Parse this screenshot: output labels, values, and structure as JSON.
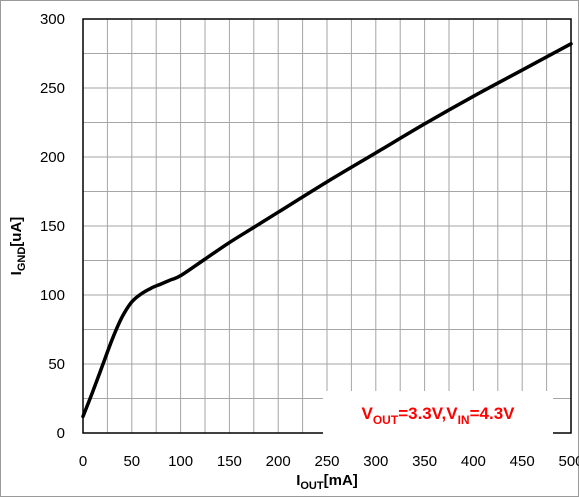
{
  "chart_data": {
    "type": "line",
    "title": "",
    "xlabel": {
      "main": "I",
      "sub": "OUT",
      "tail": "[mA]"
    },
    "ylabel": {
      "main": "I",
      "sub": "GND",
      "tail": "[uA]"
    },
    "xlim": [
      0,
      500
    ],
    "ylim": [
      0,
      300
    ],
    "x_ticks": [
      0,
      50,
      100,
      150,
      200,
      250,
      300,
      350,
      400,
      450,
      500
    ],
    "y_ticks": [
      0,
      50,
      100,
      150,
      200,
      250,
      300
    ],
    "grid": true,
    "series": [
      {
        "x": [
          0,
          10,
          20,
          30,
          40,
          50,
          60,
          70,
          80,
          90,
          100,
          125,
          150,
          175,
          200,
          250,
          300,
          350,
          400,
          450,
          500
        ],
        "y": [
          12,
          30,
          49,
          68,
          84,
          95,
          101,
          105,
          108,
          111,
          114,
          126,
          138,
          149,
          160,
          182,
          203,
          224,
          244,
          263,
          282
        ],
        "color": "#000000"
      }
    ],
    "annotation": {
      "parts": [
        {
          "text": "V",
          "sub": false
        },
        {
          "text": "OUT",
          "sub": true
        },
        {
          "text": "=3.3V,V",
          "sub": false
        },
        {
          "text": "IN",
          "sub": true
        },
        {
          "text": "=4.3V",
          "sub": false
        }
      ],
      "color": "#ff0000",
      "position": "bottom-right"
    }
  }
}
